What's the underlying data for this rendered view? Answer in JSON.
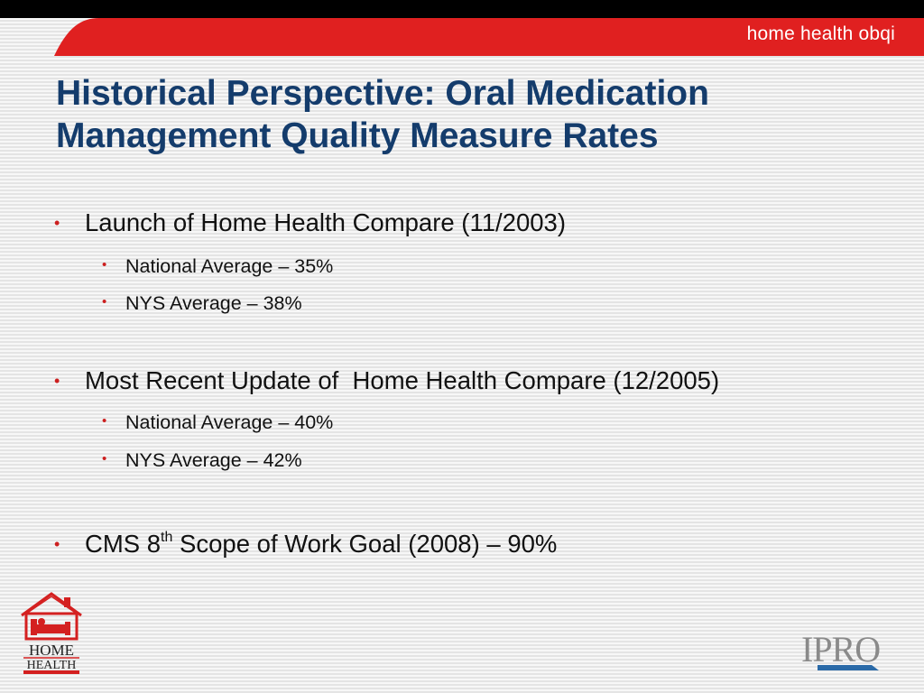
{
  "banner": {
    "label": "home health obqi"
  },
  "title": {
    "line1": "Historical Perspective: Oral Medication",
    "line2": "Management Quality Measure Rates"
  },
  "bullets": [
    {
      "text": "Launch of Home Health Compare (11/2003)",
      "sub": [
        "National Average – 35%",
        "NYS Average – 38%"
      ]
    },
    {
      "text": "Most Recent Update of  Home Health Compare (12/2005)",
      "sub": [
        "National Average – 40%",
        "NYS Average – 42%"
      ]
    },
    {
      "text_before": "CMS 8",
      "text_sup": "th",
      "text_after": " Scope of Work Goal (2008) – 90%"
    }
  ],
  "logos": {
    "home_health": {
      "line1": "HOME",
      "line2": "HEALTH"
    },
    "ipro": {
      "text": "IPRO"
    }
  },
  "colors": {
    "banner_red": "#e02020",
    "title_blue": "#143c6c",
    "bullet_red": "#cc1f1f",
    "ipro_blue": "#2a6aa8"
  }
}
